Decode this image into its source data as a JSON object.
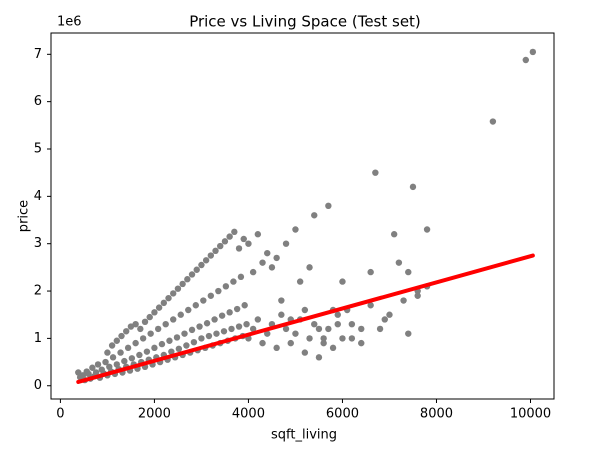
{
  "chart_data": {
    "type": "scatter",
    "title": "Price vs Living Space (Test set)",
    "xlabel": "sqft_living",
    "ylabel": "price",
    "y_offset_text": "1e6",
    "xlim": [
      -200,
      10500
    ],
    "ylim": [
      -0.28,
      7.45
    ],
    "x_ticks": [
      0,
      2000,
      4000,
      6000,
      8000,
      10000
    ],
    "x_tick_labels": [
      "0",
      "2000",
      "4000",
      "6000",
      "8000",
      "10000"
    ],
    "y_ticks": [
      0,
      1,
      2,
      3,
      4,
      5,
      6,
      7
    ],
    "y_tick_labels": [
      "0",
      "1",
      "2",
      "3",
      "4",
      "5",
      "6",
      "7"
    ],
    "grid": false,
    "colors": {
      "points": "#808080",
      "fit_line": "#ff0000"
    },
    "series": [
      {
        "kind": "scatter",
        "points": [
          [
            380,
            0.28
          ],
          [
            420,
            0.18
          ],
          [
            480,
            0.22
          ],
          [
            520,
            0.12
          ],
          [
            560,
            0.3
          ],
          [
            600,
            0.25
          ],
          [
            640,
            0.15
          ],
          [
            680,
            0.38
          ],
          [
            720,
            0.2
          ],
          [
            760,
            0.28
          ],
          [
            800,
            0.45
          ],
          [
            840,
            0.17
          ],
          [
            880,
            0.34
          ],
          [
            920,
            0.26
          ],
          [
            960,
            0.5
          ],
          [
            1000,
            0.22
          ],
          [
            1040,
            0.4
          ],
          [
            1080,
            0.3
          ],
          [
            1120,
            0.6
          ],
          [
            1160,
            0.25
          ],
          [
            1200,
            0.45
          ],
          [
            1240,
            0.35
          ],
          [
            1280,
            0.7
          ],
          [
            1320,
            0.28
          ],
          [
            1360,
            0.52
          ],
          [
            1400,
            0.4
          ],
          [
            1440,
            0.8
          ],
          [
            1480,
            0.32
          ],
          [
            1520,
            0.58
          ],
          [
            1560,
            0.45
          ],
          [
            1600,
            0.9
          ],
          [
            1640,
            0.36
          ],
          [
            1680,
            0.65
          ],
          [
            1720,
            0.5
          ],
          [
            1760,
            1.0
          ],
          [
            1800,
            0.4
          ],
          [
            1840,
            0.72
          ],
          [
            1880,
            0.55
          ],
          [
            1920,
            1.1
          ],
          [
            1960,
            0.45
          ],
          [
            2000,
            0.8
          ],
          [
            2040,
            0.6
          ],
          [
            2080,
            1.2
          ],
          [
            2120,
            0.5
          ],
          [
            2160,
            0.88
          ],
          [
            2200,
            0.65
          ],
          [
            2240,
            1.3
          ],
          [
            2280,
            0.55
          ],
          [
            2320,
            0.95
          ],
          [
            2360,
            0.72
          ],
          [
            2400,
            1.4
          ],
          [
            2440,
            0.6
          ],
          [
            2480,
            1.02
          ],
          [
            2520,
            0.78
          ],
          [
            2560,
            1.5
          ],
          [
            2600,
            0.65
          ],
          [
            2640,
            1.1
          ],
          [
            2680,
            0.85
          ],
          [
            2720,
            1.6
          ],
          [
            2760,
            0.7
          ],
          [
            2800,
            1.18
          ],
          [
            2840,
            0.92
          ],
          [
            2880,
            1.7
          ],
          [
            2920,
            0.75
          ],
          [
            2960,
            1.25
          ],
          [
            3000,
            1.0
          ],
          [
            3040,
            1.8
          ],
          [
            3080,
            0.8
          ],
          [
            3120,
            1.32
          ],
          [
            3160,
            1.05
          ],
          [
            3200,
            1.9
          ],
          [
            3240,
            0.85
          ],
          [
            3280,
            1.4
          ],
          [
            3320,
            1.1
          ],
          [
            3360,
            2.0
          ],
          [
            3400,
            0.9
          ],
          [
            3440,
            1.48
          ],
          [
            3480,
            1.15
          ],
          [
            3520,
            2.1
          ],
          [
            3560,
            0.95
          ],
          [
            3600,
            1.55
          ],
          [
            3640,
            1.2
          ],
          [
            3680,
            2.2
          ],
          [
            3720,
            1.0
          ],
          [
            3760,
            1.62
          ],
          [
            3800,
            1.25
          ],
          [
            3840,
            2.3
          ],
          [
            3880,
            1.05
          ],
          [
            3920,
            1.7
          ],
          [
            3960,
            1.3
          ],
          [
            1000,
            0.7
          ],
          [
            1100,
            0.85
          ],
          [
            1200,
            0.95
          ],
          [
            1300,
            1.05
          ],
          [
            1400,
            1.15
          ],
          [
            1500,
            1.25
          ],
          [
            1600,
            1.3
          ],
          [
            1700,
            1.2
          ],
          [
            1800,
            1.35
          ],
          [
            1900,
            1.45
          ],
          [
            2000,
            1.55
          ],
          [
            2100,
            1.65
          ],
          [
            2200,
            1.75
          ],
          [
            2300,
            1.85
          ],
          [
            2400,
            1.95
          ],
          [
            2500,
            2.05
          ],
          [
            2600,
            2.15
          ],
          [
            2700,
            2.25
          ],
          [
            2800,
            2.35
          ],
          [
            2900,
            2.45
          ],
          [
            3000,
            2.55
          ],
          [
            3100,
            2.65
          ],
          [
            3200,
            2.75
          ],
          [
            3300,
            2.85
          ],
          [
            3400,
            2.95
          ],
          [
            3500,
            3.05
          ],
          [
            3600,
            3.15
          ],
          [
            3700,
            3.25
          ],
          [
            3800,
            2.9
          ],
          [
            3900,
            3.1
          ],
          [
            4000,
            3.0
          ],
          [
            4100,
            2.4
          ],
          [
            4200,
            3.2
          ],
          [
            4300,
            2.6
          ],
          [
            4400,
            2.8
          ],
          [
            4500,
            2.5
          ],
          [
            4600,
            2.7
          ],
          [
            4700,
            1.8
          ],
          [
            4800,
            3.0
          ],
          [
            4900,
            1.4
          ],
          [
            5000,
            3.3
          ],
          [
            5100,
            2.2
          ],
          [
            5200,
            1.6
          ],
          [
            5300,
            2.5
          ],
          [
            5400,
            3.6
          ],
          [
            5500,
            1.2
          ],
          [
            5600,
            1.0
          ],
          [
            5700,
            3.8
          ],
          [
            5800,
            1.6
          ],
          [
            5900,
            1.3
          ],
          [
            6000,
            2.2
          ],
          [
            6100,
            1.6
          ],
          [
            6200,
            1.0
          ],
          [
            6400,
            1.2
          ],
          [
            6600,
            2.4
          ],
          [
            6700,
            4.5
          ],
          [
            6900,
            1.4
          ],
          [
            7100,
            3.2
          ],
          [
            7300,
            1.8
          ],
          [
            7400,
            1.1
          ],
          [
            7500,
            4.2
          ],
          [
            7600,
            2.0
          ],
          [
            7800,
            3.3
          ],
          [
            9200,
            5.58
          ],
          [
            9900,
            6.88
          ],
          [
            10050,
            7.05
          ],
          [
            4000,
            1.0
          ],
          [
            4100,
            1.2
          ],
          [
            4200,
            1.4
          ],
          [
            4300,
            0.9
          ],
          [
            4400,
            1.1
          ],
          [
            4500,
            1.3
          ],
          [
            4600,
            0.8
          ],
          [
            4700,
            1.5
          ],
          [
            4800,
            1.2
          ],
          [
            4900,
            0.9
          ],
          [
            5000,
            1.1
          ],
          [
            5100,
            1.4
          ],
          [
            5200,
            0.7
          ],
          [
            5300,
            1.0
          ],
          [
            5400,
            1.3
          ],
          [
            5500,
            0.6
          ],
          [
            5600,
            0.9
          ],
          [
            5700,
            1.2
          ],
          [
            5800,
            0.8
          ],
          [
            5900,
            1.5
          ],
          [
            6000,
            1.0
          ],
          [
            6200,
            1.3
          ],
          [
            6400,
            0.9
          ],
          [
            6600,
            1.7
          ],
          [
            6800,
            1.2
          ],
          [
            7000,
            1.5
          ],
          [
            7200,
            2.6
          ],
          [
            7400,
            2.4
          ],
          [
            7600,
            1.9
          ],
          [
            7800,
            2.1
          ]
        ]
      },
      {
        "kind": "line",
        "points": [
          [
            380,
            0.08
          ],
          [
            10050,
            2.75
          ]
        ]
      }
    ]
  }
}
